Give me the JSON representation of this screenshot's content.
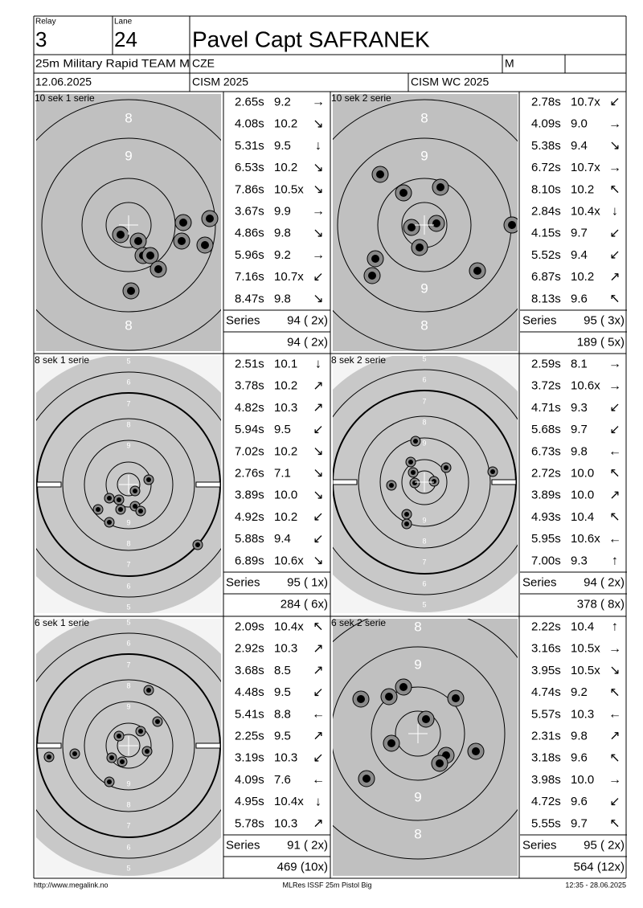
{
  "header": {
    "relay_label": "Relay",
    "relay": "3",
    "lane_label": "Lane",
    "lane": "24",
    "name": "Pavel Capt SAFRANEK",
    "event": "25m Military Rapid TEAM M",
    "nation": "CZE",
    "class": "M",
    "date": "12.06.2025",
    "competition": "CISM 2025",
    "match": "CISM WC 2025"
  },
  "panels": [
    {
      "title": "10 sek 1 serie",
      "ring_labels_top": [
        "8",
        "9"
      ],
      "ring_labels_bottom": [
        "8"
      ],
      "shots": [
        {
          "time": "2.65s",
          "score": "9.2",
          "arrow": "→"
        },
        {
          "time": "4.08s",
          "score": "10.2",
          "arrow": "↘"
        },
        {
          "time": "5.31s",
          "score": "9.5",
          "arrow": "↓"
        },
        {
          "time": "6.53s",
          "score": "10.2",
          "arrow": "↘"
        },
        {
          "time": "7.86s",
          "score": "10.5x",
          "arrow": "↘"
        },
        {
          "time": "3.67s",
          "score": "9.9",
          "arrow": "→"
        },
        {
          "time": "4.86s",
          "score": "9.8",
          "arrow": "↘"
        },
        {
          "time": "5.96s",
          "score": "9.2",
          "arrow": "→"
        },
        {
          "time": "7.16s",
          "score": "10.7x",
          "arrow": "↙"
        },
        {
          "time": "8.47s",
          "score": "9.8",
          "arrow": "↘"
        }
      ],
      "series_label": "Series",
      "series": "94 ( 2x)",
      "total": "94 ( 2x)"
    },
    {
      "title": "10 sek 2 serie",
      "ring_labels_top": [
        "8",
        "9"
      ],
      "ring_labels_bottom": [
        "9",
        "8"
      ],
      "shots": [
        {
          "time": "2.78s",
          "score": "10.7x",
          "arrow": "↙"
        },
        {
          "time": "4.09s",
          "score": "9.0",
          "arrow": "→"
        },
        {
          "time": "5.38s",
          "score": "9.4",
          "arrow": "↘"
        },
        {
          "time": "6.72s",
          "score": "10.7x",
          "arrow": "→"
        },
        {
          "time": "8.10s",
          "score": "10.2",
          "arrow": "↖"
        },
        {
          "time": "2.84s",
          "score": "10.4x",
          "arrow": "↓"
        },
        {
          "time": "4.15s",
          "score": "9.7",
          "arrow": "↙"
        },
        {
          "time": "5.52s",
          "score": "9.4",
          "arrow": "↙"
        },
        {
          "time": "6.87s",
          "score": "10.2",
          "arrow": "↗"
        },
        {
          "time": "8.13s",
          "score": "9.6",
          "arrow": "↖"
        }
      ],
      "series_label": "Series",
      "series": "95 ( 3x)",
      "total": "189 ( 5x)"
    },
    {
      "title": "8 sek 1 serie",
      "ring_labels_top": [
        "5",
        "6",
        "7",
        "8",
        "9"
      ],
      "ring_labels_bottom": [
        "9",
        "8",
        "7",
        "6",
        "5"
      ],
      "shots": [
        {
          "time": "2.51s",
          "score": "10.1",
          "arrow": "↓"
        },
        {
          "time": "3.78s",
          "score": "10.2",
          "arrow": "↗"
        },
        {
          "time": "4.82s",
          "score": "10.3",
          "arrow": "↗"
        },
        {
          "time": "5.94s",
          "score": "9.5",
          "arrow": "↙"
        },
        {
          "time": "7.02s",
          "score": "10.2",
          "arrow": "↘"
        },
        {
          "time": "2.76s",
          "score": "7.1",
          "arrow": "↘"
        },
        {
          "time": "3.89s",
          "score": "10.0",
          "arrow": "↘"
        },
        {
          "time": "4.92s",
          "score": "10.2",
          "arrow": "↙"
        },
        {
          "time": "5.88s",
          "score": "9.4",
          "arrow": "↙"
        },
        {
          "time": "6.89s",
          "score": "10.6x",
          "arrow": "↘"
        }
      ],
      "series_label": "Series",
      "series": "95 ( 1x)",
      "total": "284 ( 6x)"
    },
    {
      "title": "8 sek 2 serie",
      "ring_labels_top": [
        "5",
        "6",
        "7",
        "8",
        "9"
      ],
      "ring_labels_bottom": [
        "9",
        "8",
        "7",
        "6",
        "5"
      ],
      "shots": [
        {
          "time": "2.59s",
          "score": "8.1",
          "arrow": "→"
        },
        {
          "time": "3.72s",
          "score": "10.6x",
          "arrow": "→"
        },
        {
          "time": "4.71s",
          "score": "9.3",
          "arrow": "↙"
        },
        {
          "time": "5.68s",
          "score": "9.7",
          "arrow": "↙"
        },
        {
          "time": "6.73s",
          "score": "9.8",
          "arrow": "←"
        },
        {
          "time": "2.72s",
          "score": "10.0",
          "arrow": "↖"
        },
        {
          "time": "3.89s",
          "score": "10.0",
          "arrow": "↗"
        },
        {
          "time": "4.93s",
          "score": "10.4",
          "arrow": "↖"
        },
        {
          "time": "5.95s",
          "score": "10.6x",
          "arrow": "←"
        },
        {
          "time": "7.00s",
          "score": "9.3",
          "arrow": "↑"
        }
      ],
      "series_label": "Series",
      "series": "94 ( 2x)",
      "total": "378 ( 8x)"
    },
    {
      "title": "6 sek 1 serie",
      "ring_labels_top": [
        "5",
        "6",
        "7",
        "8",
        "9"
      ],
      "ring_labels_bottom": [
        "9",
        "8",
        "7",
        "6",
        "5"
      ],
      "shots": [
        {
          "time": "2.09s",
          "score": "10.4x",
          "arrow": "↖"
        },
        {
          "time": "2.92s",
          "score": "10.3",
          "arrow": "↗"
        },
        {
          "time": "3.68s",
          "score": "8.5",
          "arrow": "↗"
        },
        {
          "time": "4.48s",
          "score": "9.5",
          "arrow": "↙"
        },
        {
          "time": "5.41s",
          "score": "8.8",
          "arrow": "←"
        },
        {
          "time": "2.25s",
          "score": "9.5",
          "arrow": "↗"
        },
        {
          "time": "3.19s",
          "score": "10.3",
          "arrow": "↙"
        },
        {
          "time": "4.09s",
          "score": "7.6",
          "arrow": "←"
        },
        {
          "time": "4.95s",
          "score": "10.4x",
          "arrow": "↓"
        },
        {
          "time": "5.78s",
          "score": "10.3",
          "arrow": "↗"
        }
      ],
      "series_label": "Series",
      "series": "91 ( 2x)",
      "total": "469 (10x)"
    },
    {
      "title": "6 sek 2 serie",
      "ring_labels_top": [
        "8",
        "9"
      ],
      "ring_labels_bottom": [
        "9",
        "8"
      ],
      "shots": [
        {
          "time": "2.22s",
          "score": "10.4",
          "arrow": "↑"
        },
        {
          "time": "3.16s",
          "score": "10.5x",
          "arrow": "→"
        },
        {
          "time": "3.95s",
          "score": "10.5x",
          "arrow": "↘"
        },
        {
          "time": "4.74s",
          "score": "9.2",
          "arrow": "↖"
        },
        {
          "time": "5.57s",
          "score": "10.3",
          "arrow": "←"
        },
        {
          "time": "2.31s",
          "score": "9.8",
          "arrow": "↗"
        },
        {
          "time": "3.18s",
          "score": "9.6",
          "arrow": "↖"
        },
        {
          "time": "3.98s",
          "score": "10.0",
          "arrow": "→"
        },
        {
          "time": "4.72s",
          "score": "9.6",
          "arrow": "↙"
        },
        {
          "time": "5.55s",
          "score": "9.7",
          "arrow": "↖"
        }
      ],
      "series_label": "Series",
      "series": "95 ( 2x)",
      "total": "564 (12x)"
    }
  ],
  "footer": {
    "url": "http://www.megalink.no",
    "software": "MLRes ISSF 25m Pistol Big",
    "timestamp": "12:35 - 28.06.2025"
  }
}
